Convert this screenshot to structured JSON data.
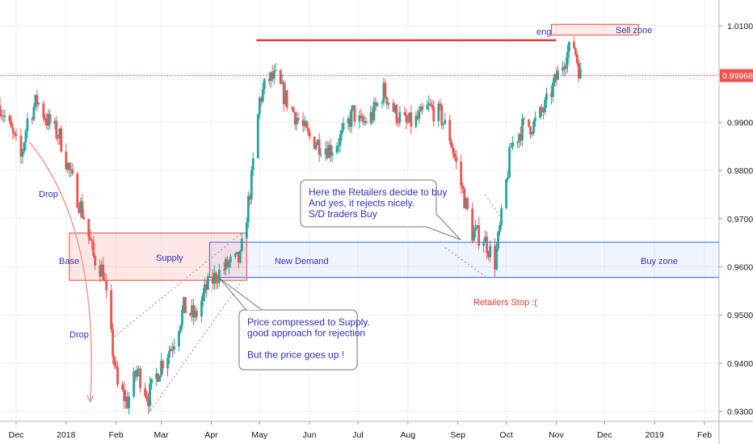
{
  "chart_data": {
    "type": "candlestick",
    "price_range": [
      0.9292,
      1.0125
    ],
    "x_range": [
      "2017-11-21",
      "2019-02-10"
    ],
    "y_ticks": [
      {
        "value": 0.93,
        "label": "0.93000"
      },
      {
        "value": 0.94,
        "label": "0.94000"
      },
      {
        "value": 0.95,
        "label": "0.95000"
      },
      {
        "value": 0.96,
        "label": "0.96000"
      },
      {
        "value": 0.97,
        "label": "0.97000"
      },
      {
        "value": 0.98,
        "label": "0.98000"
      },
      {
        "value": 0.99,
        "label": "0.99000"
      },
      {
        "value": 1.0,
        "label": "1.00000"
      },
      {
        "value": 1.01,
        "label": "1.01000"
      }
    ],
    "x_ticks": [
      {
        "date": "2017-12-01",
        "label": "Dec"
      },
      {
        "date": "2018-01-01",
        "label": "2018"
      },
      {
        "date": "2018-02-01",
        "label": "Feb"
      },
      {
        "date": "2018-03-01",
        "label": "Mar"
      },
      {
        "date": "2018-04-01",
        "label": "Apr"
      },
      {
        "date": "2018-05-01",
        "label": "May"
      },
      {
        "date": "2018-06-01",
        "label": "Jun"
      },
      {
        "date": "2018-07-01",
        "label": "Jul"
      },
      {
        "date": "2018-08-01",
        "label": "Aug"
      },
      {
        "date": "2018-09-01",
        "label": "Sep"
      },
      {
        "date": "2018-10-01",
        "label": "Oct"
      },
      {
        "date": "2018-11-01",
        "label": "Nov"
      },
      {
        "date": "2018-12-01",
        "label": "Dec"
      },
      {
        "date": "2019-01-01",
        "label": "2019"
      },
      {
        "date": "2019-02-01",
        "label": "Feb"
      }
    ],
    "last_price": {
      "value": 0.99968,
      "label": "0.99968"
    },
    "price_path": [
      [
        "2017-11-21",
        0.9935
      ],
      [
        "2017-11-28",
        0.988
      ],
      [
        "2017-12-04",
        0.9825
      ],
      [
        "2017-12-08",
        0.9905
      ],
      [
        "2017-12-14",
        0.9945
      ],
      [
        "2017-12-20",
        0.9905
      ],
      [
        "2017-12-28",
        0.987
      ],
      [
        "2018-01-04",
        0.9785
      ],
      [
        "2018-01-12",
        0.9705
      ],
      [
        "2018-01-18",
        0.962
      ],
      [
        "2018-01-24",
        0.959
      ],
      [
        "2018-01-29",
        0.945
      ],
      [
        "2018-02-02",
        0.935
      ],
      [
        "2018-02-08",
        0.932
      ],
      [
        "2018-02-14",
        0.9385
      ],
      [
        "2018-02-21",
        0.933
      ],
      [
        "2018-03-01",
        0.94
      ],
      [
        "2018-03-08",
        0.944
      ],
      [
        "2018-03-15",
        0.9515
      ],
      [
        "2018-03-22",
        0.9495
      ],
      [
        "2018-03-29",
        0.9555
      ],
      [
        "2018-04-05",
        0.9585
      ],
      [
        "2018-04-12",
        0.9605
      ],
      [
        "2018-04-19",
        0.9615
      ],
      [
        "2018-04-26",
        0.978
      ],
      [
        "2018-05-01",
        0.9945
      ],
      [
        "2018-05-06",
        0.999
      ],
      [
        "2018-05-11",
        0.999
      ],
      [
        "2018-05-17",
        0.995
      ],
      [
        "2018-05-24",
        0.991
      ],
      [
        "2018-05-31",
        0.987
      ],
      [
        "2018-06-07",
        0.9855
      ],
      [
        "2018-06-14",
        0.9845
      ],
      [
        "2018-06-21",
        0.987
      ],
      [
        "2018-06-28",
        0.992
      ],
      [
        "2018-07-03",
        0.9895
      ],
      [
        "2018-07-10",
        0.9915
      ],
      [
        "2018-07-17",
        0.9965
      ],
      [
        "2018-07-24",
        0.992
      ],
      [
        "2018-07-31",
        0.9895
      ],
      [
        "2018-08-07",
        0.9905
      ],
      [
        "2018-08-14",
        0.993
      ],
      [
        "2018-08-21",
        0.9915
      ],
      [
        "2018-08-27",
        0.987
      ],
      [
        "2018-09-03",
        0.977
      ],
      [
        "2018-09-10",
        0.967
      ],
      [
        "2018-09-17",
        0.966
      ],
      [
        "2018-09-24",
        0.961
      ],
      [
        "2018-09-28",
        0.97
      ],
      [
        "2018-10-04",
        0.985
      ],
      [
        "2018-10-11",
        0.989
      ],
      [
        "2018-10-18",
        0.9895
      ],
      [
        "2018-10-25",
        0.993
      ],
      [
        "2018-11-01",
        0.999
      ],
      [
        "2018-11-07",
        1.004
      ],
      [
        "2018-11-12",
        1.006
      ],
      [
        "2018-11-16",
        0.9997
      ]
    ],
    "annotations": {
      "supply_zone": {
        "label": "Supply",
        "price_low": 0.9572,
        "price_high": 0.967,
        "start": "2018-01-03",
        "end": "2018-04-23",
        "color": "#f44336"
      },
      "demand_zone": {
        "label": "New Demand",
        "price_low": 0.9578,
        "price_high": 0.9651,
        "start": "2018-03-31",
        "end": "2019-02-10",
        "color": "#2962ff"
      },
      "sell_zone": {
        "label": "Sell zone",
        "price_low": 1.0081,
        "price_high": 1.0103,
        "start": "2018-10-29",
        "end": "2018-12-22",
        "color": "#f44336"
      },
      "resistance_line": {
        "price": 1.007,
        "start": "2018-04-29",
        "end": "2018-11-01",
        "color": "#e53935"
      },
      "labels": [
        "Drop",
        "Base",
        "Drop",
        "eng",
        "Buy zone",
        "Retailers Stop :("
      ],
      "callouts": [
        "Here the Retailers decide to buy\nAnd yes, it rejects nicely.\nS/D traders Buy",
        "Price compressed to Supply.\ngood approach for rejection\n\nBut the price goes up !"
      ]
    },
    "colors": {
      "bull": "#26a69a",
      "bear": "#ef5350",
      "text": "#2f2fb8",
      "red_text": "#e53935",
      "grid": "#eef0f3"
    }
  }
}
